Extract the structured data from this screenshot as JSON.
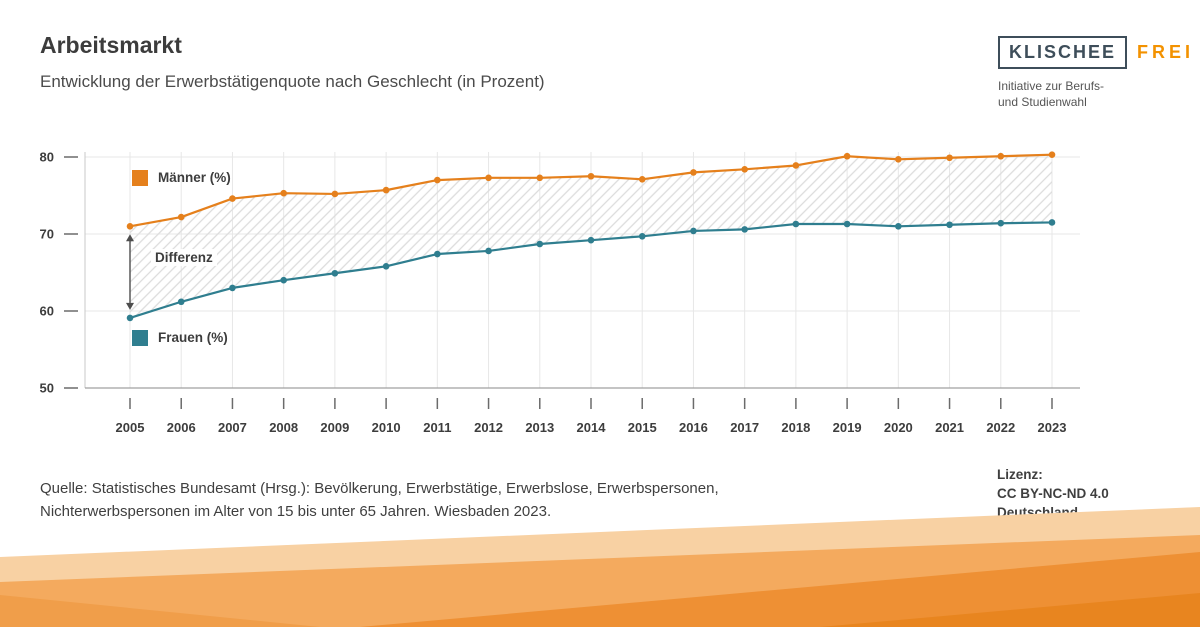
{
  "header": {
    "title": "Arbeitsmarkt",
    "subtitle": "Entwicklung der Erwerbstätigenquote nach Geschlecht (in Prozent)"
  },
  "logo": {
    "brand_primary": "KLISCHEE",
    "brand_secondary": "FREI",
    "tagline_line1": "Initiative zur Berufs-",
    "tagline_line2": "und Studienwahl"
  },
  "chart_data": {
    "type": "line",
    "title": "Entwicklung der Erwerbstätigenquote nach Geschlecht (in Prozent)",
    "x": [
      "2005",
      "2006",
      "2007",
      "2008",
      "2009",
      "2010",
      "2011",
      "2012",
      "2013",
      "2014",
      "2015",
      "2016",
      "2017",
      "2018",
      "2019",
      "2020",
      "2021",
      "2022",
      "2023"
    ],
    "series": [
      {
        "name": "Männer (%)",
        "color": "#E5801C",
        "values": [
          71.0,
          72.2,
          74.6,
          75.3,
          75.2,
          75.7,
          77.0,
          77.3,
          77.3,
          77.5,
          77.1,
          78.0,
          78.4,
          78.9,
          80.1,
          79.7,
          79.9,
          80.1,
          80.3
        ]
      },
      {
        "name": "Frauen (%)",
        "color": "#2F7E8F",
        "values": [
          59.1,
          61.2,
          63.0,
          64.0,
          64.9,
          65.8,
          67.4,
          67.8,
          68.7,
          69.2,
          69.7,
          70.4,
          70.6,
          71.3,
          71.3,
          71.0,
          71.2,
          71.4,
          71.5
        ]
      }
    ],
    "annotation": "Differenz",
    "ylim": [
      50,
      80
    ],
    "yticks": [
      80,
      70,
      60,
      50
    ],
    "grid": true,
    "legend_position": "inside-left"
  },
  "footer": {
    "source_line1": "Quelle: Statistisches Bundesamt (Hrsg.): Bevölkerung, Erwerbstätige, Erwerbslose, Erwerbspersonen,",
    "source_line2": "Nichterwerbspersonen im Alter von 15 bis unter 65 Jahren. Wiesbaden 2023.",
    "license_label": "Lizenz:",
    "license_line1": "CC BY-NC-ND 4.0",
    "license_line2": "Deutschland"
  },
  "colors": {
    "maenner": "#E5801C",
    "frauen": "#2F7E8F",
    "accent_orange": "#F39200"
  }
}
